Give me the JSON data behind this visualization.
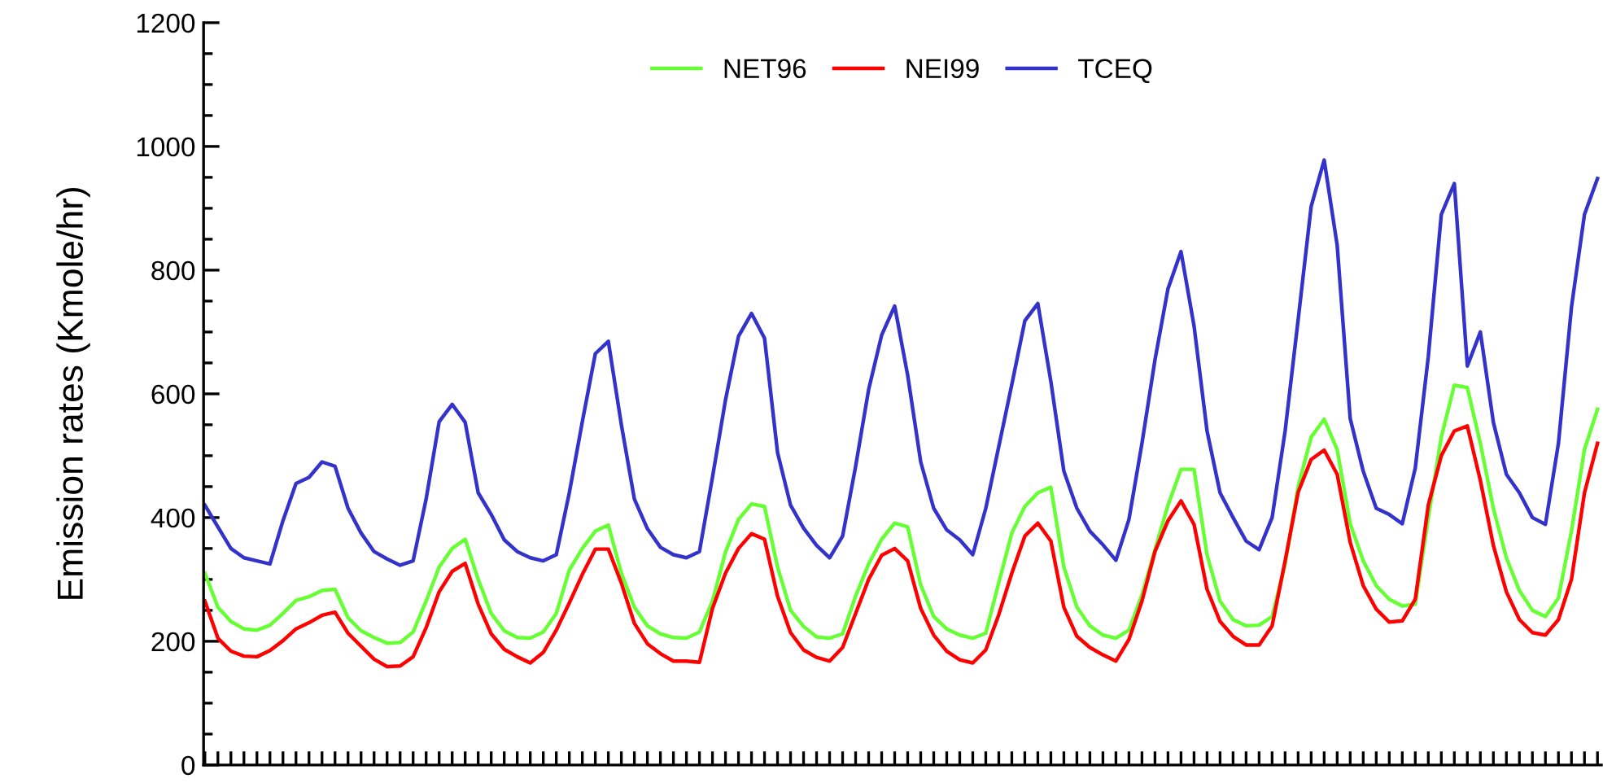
{
  "chart_data": {
    "type": "line",
    "ylabel": "Emission rates (Kmole/hr)",
    "categories": [
      null,
      null,
      null,
      null,
      null,
      null,
      null,
      null,
      null,
      null,
      null,
      null,
      null,
      null,
      null,
      null,
      null,
      null,
      null,
      null,
      null,
      null,
      null,
      null,
      null,
      null,
      null,
      null,
      null,
      null,
      null,
      null,
      null,
      null,
      null,
      null,
      null,
      null,
      null,
      null,
      null,
      null,
      null,
      null,
      null,
      null,
      null,
      null,
      null,
      null,
      null,
      null,
      null,
      null,
      null,
      null,
      null,
      null,
      null,
      null,
      null,
      null,
      null,
      null,
      null,
      null,
      null,
      null,
      null,
      null,
      null,
      null,
      null,
      null,
      null,
      null,
      null,
      null,
      null,
      null,
      null,
      null,
      null,
      null,
      null,
      null,
      null,
      null,
      null,
      null,
      null,
      null,
      null,
      null,
      null,
      null,
      null,
      null,
      null,
      null,
      null,
      null,
      null,
      null,
      null,
      null,
      null,
      null
    ],
    "series": [
      {
        "name": "NET96",
        "color": "#66ff33",
        "values": [
          310,
          255,
          232,
          220,
          218,
          226,
          245,
          266,
          272,
          282,
          284,
          238,
          217,
          206,
          197,
          198,
          215,
          265,
          320,
          350,
          365,
          300,
          245,
          217,
          206,
          205,
          215,
          245,
          315,
          350,
          378,
          388,
          310,
          255,
          225,
          212,
          206,
          205,
          215,
          265,
          344,
          397,
          422,
          418,
          320,
          250,
          224,
          207,
          205,
          212,
          273,
          325,
          365,
          391,
          385,
          291,
          240,
          220,
          210,
          205,
          213,
          295,
          375,
          418,
          440,
          449,
          320,
          255,
          225,
          210,
          205,
          218,
          275,
          348,
          420,
          478,
          478,
          340,
          265,
          235,
          225,
          226,
          240,
          325,
          450,
          530,
          559,
          510,
          390,
          330,
          290,
          268,
          257,
          260,
          400,
          530,
          614,
          610,
          520,
          415,
          335,
          282,
          250,
          240,
          270,
          378,
          510,
          575
        ]
      },
      {
        "name": "NEI99",
        "color": "#ff0000",
        "values": [
          265,
          205,
          184,
          176,
          175,
          185,
          201,
          220,
          230,
          242,
          247,
          213,
          192,
          171,
          159,
          160,
          175,
          222,
          280,
          313,
          326,
          260,
          212,
          187,
          175,
          165,
          182,
          218,
          262,
          308,
          349,
          349,
          294,
          229,
          196,
          180,
          168,
          168,
          166,
          253,
          310,
          350,
          374,
          365,
          273,
          214,
          186,
          174,
          168,
          190,
          245,
          300,
          339,
          350,
          330,
          253,
          210,
          184,
          170,
          165,
          186,
          243,
          310,
          370,
          391,
          362,
          255,
          208,
          190,
          178,
          168,
          203,
          265,
          345,
          395,
          427,
          389,
          284,
          232,
          208,
          194,
          194,
          225,
          330,
          441,
          494,
          509,
          470,
          360,
          290,
          252,
          231,
          233,
          268,
          420,
          500,
          540,
          548,
          460,
          355,
          280,
          235,
          214,
          210,
          235,
          300,
          440,
          520
        ]
      },
      {
        "name": "TCEQ",
        "color": "#3333cc",
        "values": [
          420,
          385,
          350,
          335,
          330,
          325,
          395,
          455,
          465,
          490,
          483,
          415,
          375,
          345,
          333,
          323,
          330,
          430,
          555,
          583,
          554,
          440,
          405,
          364,
          345,
          335,
          330,
          340,
          440,
          555,
          665,
          685,
          550,
          430,
          382,
          352,
          340,
          335,
          345,
          465,
          590,
          693,
          730,
          690,
          505,
          420,
          383,
          355,
          335,
          370,
          483,
          607,
          695,
          742,
          630,
          490,
          415,
          380,
          364,
          340,
          415,
          515,
          615,
          718,
          746,
          620,
          475,
          415,
          378,
          356,
          331,
          397,
          520,
          655,
          770,
          830,
          710,
          540,
          440,
          400,
          362,
          348,
          400,
          540,
          720,
          903,
          978,
          840,
          560,
          475,
          415,
          405,
          390,
          480,
          660,
          890,
          940,
          645,
          700,
          554,
          470,
          440,
          400,
          389,
          520,
          740,
          890,
          948
        ]
      }
    ],
    "ylim": [
      0,
      1200
    ],
    "yticks": [
      0,
      200,
      400,
      600,
      800,
      1000,
      1200
    ],
    "grid": false,
    "legend": "top",
    "marker": "none",
    "line_style": "solid",
    "tick_labels": "y"
  }
}
